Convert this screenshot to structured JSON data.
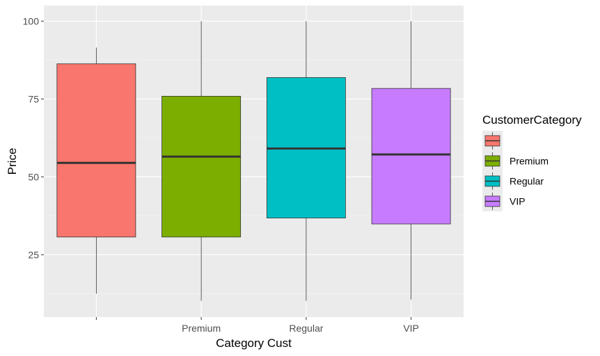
{
  "chart_data": {
    "type": "boxplot",
    "xlabel": "Category Cust",
    "ylabel": "Price",
    "categories": [
      "",
      "Premium",
      "Regular",
      "VIP"
    ],
    "ylim": [
      5,
      105
    ],
    "y_ticks": [
      25,
      50,
      75,
      100
    ],
    "y_minor_ticks": [
      12.5,
      37.5,
      62.5,
      87.5
    ],
    "grid": true,
    "boxes": [
      {
        "category": "",
        "min": 12.5,
        "q1": 30.7,
        "median": 54.5,
        "q3": 86.3,
        "max": 91.5,
        "color": "#F8766D"
      },
      {
        "category": "Premium",
        "min": 10.2,
        "q1": 30.7,
        "median": 56.5,
        "q3": 75.9,
        "max": 100.0,
        "color": "#7CAE00"
      },
      {
        "category": "Regular",
        "min": 10.2,
        "q1": 36.8,
        "median": 59.1,
        "q3": 81.9,
        "max": 100.0,
        "color": "#00BFC4"
      },
      {
        "category": "VIP",
        "min": 10.6,
        "q1": 34.9,
        "median": 57.2,
        "q3": 78.4,
        "max": 100.0,
        "color": "#C77CFF"
      }
    ],
    "legend": {
      "title": "CustomerCategory",
      "position": "right",
      "items": [
        {
          "label": "",
          "color": "#F8766D"
        },
        {
          "label": "Premium",
          "color": "#7CAE00"
        },
        {
          "label": "Regular",
          "color": "#00BFC4"
        },
        {
          "label": "VIP",
          "color": "#C77CFF"
        }
      ]
    },
    "colors": {
      "panel_background": "#EBEBEB",
      "grid_major": "#FFFFFF",
      "grid_minor": "#F5F5F5",
      "axis_text": "#4D4D4D",
      "title_text": "#000000",
      "box_outline": "#333333",
      "median_line": "#333333"
    }
  }
}
